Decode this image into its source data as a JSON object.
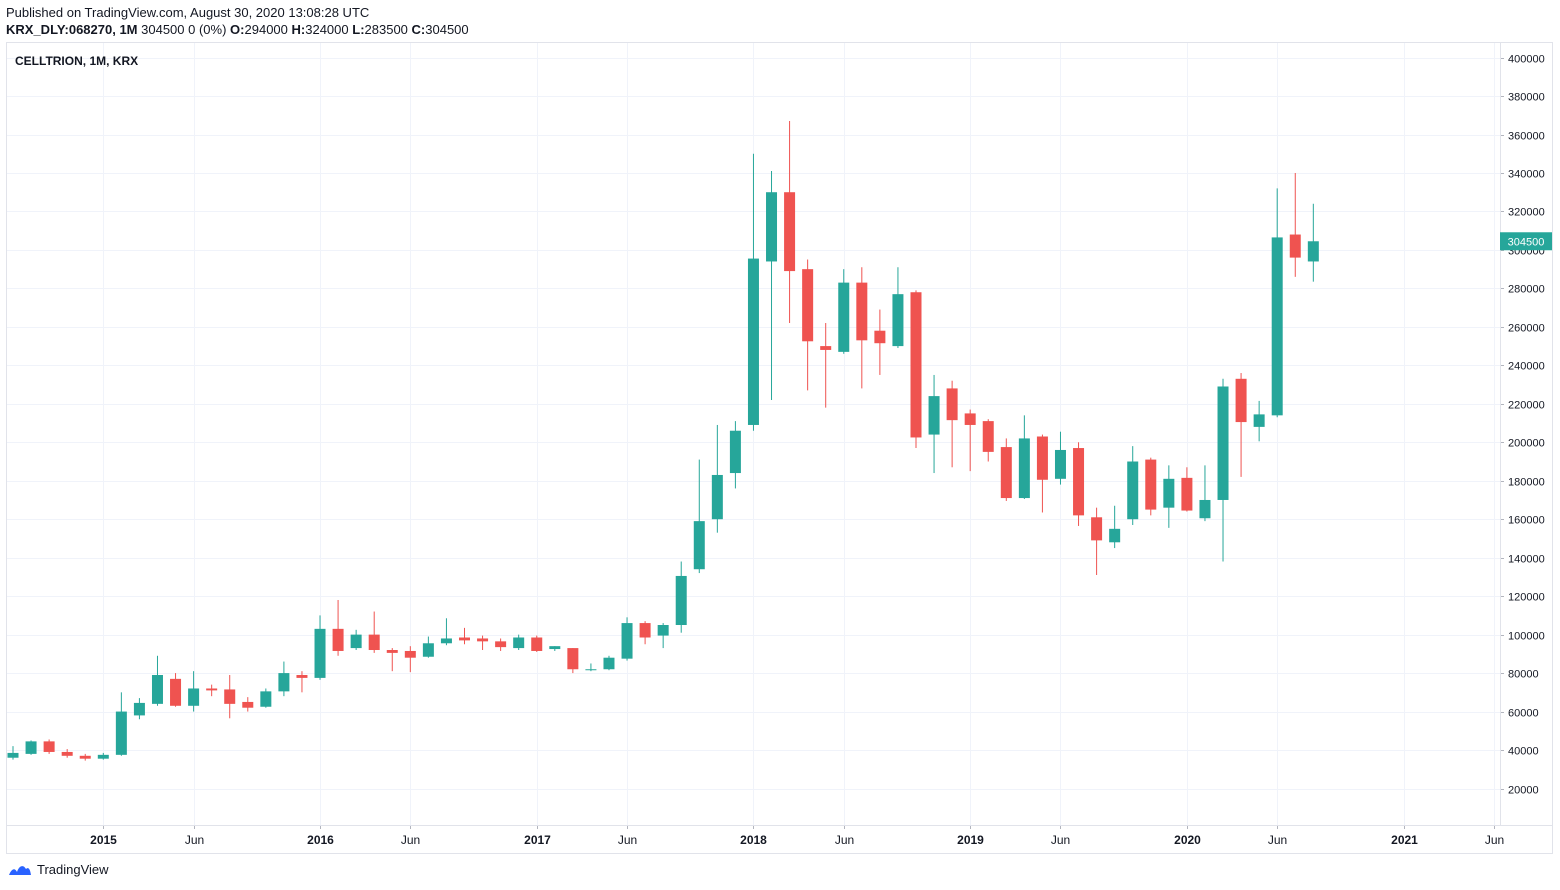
{
  "header": {
    "published": "Published on TradingView.com, August 30, 2020 13:08:28 UTC",
    "symbol": "KRX_DLY:068270, 1M",
    "change": "304500 0 (0%)",
    "o_label": "O:",
    "o": "294000",
    "h_label": "H:",
    "h": "324000",
    "l_label": "L:",
    "l": "283500",
    "c_label": "C:",
    "c": "304500"
  },
  "footer": {
    "brand": "TradingView"
  },
  "colors": {
    "up": "#26a69a",
    "down": "#ef5350",
    "grid": "#f0f3fa",
    "price_tag": "#26a69a"
  },
  "chart_data": {
    "type": "candlestick",
    "title": "CELLTRION, 1M, KRX",
    "interval": "1M",
    "ylim": [
      0,
      400000
    ],
    "y_ticks": [
      20000,
      40000,
      60000,
      80000,
      100000,
      120000,
      140000,
      160000,
      180000,
      200000,
      220000,
      240000,
      260000,
      280000,
      300000,
      320000,
      340000,
      360000,
      380000,
      400000
    ],
    "x_ticks": [
      {
        "label": "2015",
        "idx": 5,
        "bold": true
      },
      {
        "label": "Jun",
        "idx": 10,
        "bold": false
      },
      {
        "label": "2016",
        "idx": 17,
        "bold": true
      },
      {
        "label": "Jun",
        "idx": 22,
        "bold": false
      },
      {
        "label": "2017",
        "idx": 29,
        "bold": true
      },
      {
        "label": "Jun",
        "idx": 34,
        "bold": false
      },
      {
        "label": "2018",
        "idx": 41,
        "bold": true
      },
      {
        "label": "Jun",
        "idx": 46,
        "bold": false
      },
      {
        "label": "2019",
        "idx": 53,
        "bold": true
      },
      {
        "label": "Jun",
        "idx": 58,
        "bold": false
      },
      {
        "label": "2020",
        "idx": 65,
        "bold": true
      },
      {
        "label": "Jun",
        "idx": 70,
        "bold": false
      },
      {
        "label": "2021",
        "idx": 77,
        "bold": true
      },
      {
        "label": "Jun",
        "idx": 82,
        "bold": false
      }
    ],
    "candles": [
      {
        "o": 36000,
        "h": 42000,
        "l": 35000,
        "c": 38500
      },
      {
        "o": 38000,
        "h": 45000,
        "l": 37500,
        "c": 44500
      },
      {
        "o": 44500,
        "h": 45500,
        "l": 38000,
        "c": 39000
      },
      {
        "o": 39000,
        "h": 40500,
        "l": 36000,
        "c": 37000
      },
      {
        "o": 37000,
        "h": 38000,
        "l": 34500,
        "c": 35500
      },
      {
        "o": 35500,
        "h": 38500,
        "l": 35000,
        "c": 37500
      },
      {
        "o": 37500,
        "h": 70000,
        "l": 37000,
        "c": 60000
      },
      {
        "o": 58000,
        "h": 67000,
        "l": 56000,
        "c": 64500
      },
      {
        "o": 64000,
        "h": 89000,
        "l": 63000,
        "c": 79000
      },
      {
        "o": 77000,
        "h": 80000,
        "l": 62500,
        "c": 63000
      },
      {
        "o": 63000,
        "h": 81000,
        "l": 60000,
        "c": 72000
      },
      {
        "o": 72000,
        "h": 74000,
        "l": 68000,
        "c": 71000
      },
      {
        "o": 71500,
        "h": 79000,
        "l": 56500,
        "c": 64000
      },
      {
        "o": 65000,
        "h": 67500,
        "l": 60000,
        "c": 62000
      },
      {
        "o": 62500,
        "h": 72000,
        "l": 62000,
        "c": 70500
      },
      {
        "o": 70500,
        "h": 86000,
        "l": 68000,
        "c": 80000
      },
      {
        "o": 79000,
        "h": 81000,
        "l": 70000,
        "c": 77500
      },
      {
        "o": 77500,
        "h": 110000,
        "l": 76500,
        "c": 103000
      },
      {
        "o": 103000,
        "h": 118000,
        "l": 89000,
        "c": 91500
      },
      {
        "o": 93000,
        "h": 102500,
        "l": 92000,
        "c": 100000
      },
      {
        "o": 100000,
        "h": 112000,
        "l": 90500,
        "c": 92000
      },
      {
        "o": 92000,
        "h": 93000,
        "l": 81000,
        "c": 90500
      },
      {
        "o": 91500,
        "h": 94000,
        "l": 80500,
        "c": 88000
      },
      {
        "o": 88500,
        "h": 99000,
        "l": 88000,
        "c": 95500
      },
      {
        "o": 95500,
        "h": 108500,
        "l": 94500,
        "c": 98000
      },
      {
        "o": 98500,
        "h": 103500,
        "l": 95000,
        "c": 97000
      },
      {
        "o": 98000,
        "h": 99500,
        "l": 92000,
        "c": 96500
      },
      {
        "o": 96500,
        "h": 98000,
        "l": 91500,
        "c": 93500
      },
      {
        "o": 93000,
        "h": 100000,
        "l": 92000,
        "c": 98500
      },
      {
        "o": 98500,
        "h": 99500,
        "l": 91000,
        "c": 91500
      },
      {
        "o": 92500,
        "h": 94000,
        "l": 91500,
        "c": 94000
      },
      {
        "o": 93000,
        "h": 93000,
        "l": 80000,
        "c": 82000
      },
      {
        "o": 82000,
        "h": 85000,
        "l": 81000,
        "c": 82000
      },
      {
        "o": 82000,
        "h": 89000,
        "l": 81500,
        "c": 88000
      },
      {
        "o": 87500,
        "h": 109000,
        "l": 86500,
        "c": 106000
      },
      {
        "o": 106000,
        "h": 107000,
        "l": 95000,
        "c": 98500
      },
      {
        "o": 99500,
        "h": 106000,
        "l": 93000,
        "c": 105000
      },
      {
        "o": 105000,
        "h": 138000,
        "l": 101000,
        "c": 130500
      },
      {
        "o": 134000,
        "h": 191000,
        "l": 132000,
        "c": 159000
      },
      {
        "o": 160000,
        "h": 209000,
        "l": 153000,
        "c": 183000
      },
      {
        "o": 184000,
        "h": 211000,
        "l": 176000,
        "c": 206000
      },
      {
        "o": 209000,
        "h": 350000,
        "l": 206000,
        "c": 295500
      },
      {
        "o": 294000,
        "h": 341000,
        "l": 222000,
        "c": 330000
      },
      {
        "o": 330000,
        "h": 367000,
        "l": 262000,
        "c": 289000
      },
      {
        "o": 290000,
        "h": 295000,
        "l": 227000,
        "c": 252500
      },
      {
        "o": 250000,
        "h": 262000,
        "l": 218000,
        "c": 248000
      },
      {
        "o": 247000,
        "h": 290000,
        "l": 246000,
        "c": 283000
      },
      {
        "o": 283000,
        "h": 291000,
        "l": 228000,
        "c": 253000
      },
      {
        "o": 258000,
        "h": 269000,
        "l": 235000,
        "c": 251500
      },
      {
        "o": 250000,
        "h": 291000,
        "l": 249000,
        "c": 277000
      },
      {
        "o": 278000,
        "h": 279000,
        "l": 197000,
        "c": 202500
      },
      {
        "o": 204000,
        "h": 235000,
        "l": 184000,
        "c": 224000
      },
      {
        "o": 228000,
        "h": 232000,
        "l": 187000,
        "c": 211500
      },
      {
        "o": 215000,
        "h": 217000,
        "l": 185000,
        "c": 209000
      },
      {
        "o": 211000,
        "h": 212000,
        "l": 190000,
        "c": 195000
      },
      {
        "o": 197500,
        "h": 202000,
        "l": 169500,
        "c": 171000
      },
      {
        "o": 171000,
        "h": 214000,
        "l": 170500,
        "c": 202000
      },
      {
        "o": 203000,
        "h": 204000,
        "l": 163500,
        "c": 180500
      },
      {
        "o": 181000,
        "h": 205500,
        "l": 178000,
        "c": 196000
      },
      {
        "o": 197000,
        "h": 200000,
        "l": 156500,
        "c": 162000
      },
      {
        "o": 161000,
        "h": 166000,
        "l": 131000,
        "c": 149000
      },
      {
        "o": 148000,
        "h": 167000,
        "l": 145000,
        "c": 155000
      },
      {
        "o": 160000,
        "h": 198000,
        "l": 157000,
        "c": 190000
      },
      {
        "o": 191000,
        "h": 192000,
        "l": 162000,
        "c": 165000
      },
      {
        "o": 166000,
        "h": 188000,
        "l": 155500,
        "c": 181000
      },
      {
        "o": 181500,
        "h": 187000,
        "l": 164000,
        "c": 164500
      },
      {
        "o": 160500,
        "h": 188000,
        "l": 159000,
        "c": 170000
      },
      {
        "o": 170000,
        "h": 233000,
        "l": 138000,
        "c": 229000
      },
      {
        "o": 233000,
        "h": 236000,
        "l": 182000,
        "c": 210500
      },
      {
        "o": 208000,
        "h": 221500,
        "l": 200500,
        "c": 214500
      },
      {
        "o": 214000,
        "h": 332000,
        "l": 213000,
        "c": 306500
      },
      {
        "o": 308000,
        "h": 340000,
        "l": 286000,
        "c": 296000
      },
      {
        "o": 294000,
        "h": 324000,
        "l": 283500,
        "c": 304500
      }
    ],
    "last_price": 304500
  }
}
